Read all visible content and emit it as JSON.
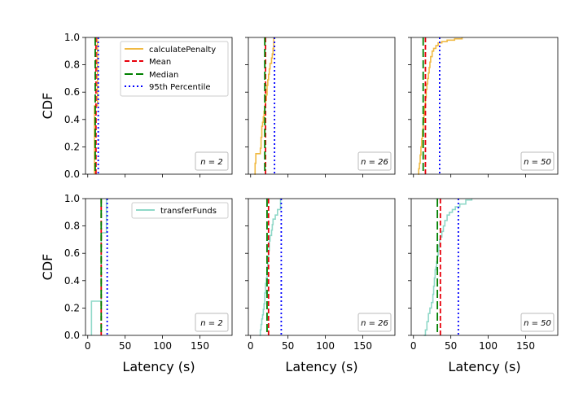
{
  "figure": {
    "ylabel": "CDF",
    "xlabel": "Latency (s)"
  },
  "colors": {
    "calculatePenalty": "#f0b942",
    "transferFunds": "#8fd8c8",
    "mean": "#e8000b",
    "median": "#008000",
    "p95": "#0000ff"
  },
  "legend": {
    "row0": [
      "calculatePenalty",
      "Mean",
      "Median",
      "95th Percentile"
    ],
    "row1": [
      "transferFunds"
    ]
  },
  "chart_data": [
    {
      "type": "line",
      "row": 0,
      "col": 0,
      "series": "calculatePenalty",
      "n_label": "n = 2",
      "xlim": [
        -3,
        193
      ],
      "ylim": [
        0,
        1
      ],
      "xticks": [
        0,
        50,
        100,
        150
      ],
      "yticks": [
        0.0,
        0.2,
        0.4,
        0.6,
        0.8,
        1.0
      ],
      "mean": 11,
      "median": 10,
      "p95": 14,
      "x": [
        9,
        9,
        13,
        13
      ],
      "y": [
        0,
        0.5,
        0.5,
        1.0
      ]
    },
    {
      "type": "line",
      "row": 0,
      "col": 1,
      "series": "calculatePenalty",
      "n_label": "n = 26",
      "xlim": [
        -3,
        193
      ],
      "ylim": [
        0,
        1
      ],
      "xticks": [
        0,
        50,
        100,
        150
      ],
      "yticks": [
        0.0,
        0.2,
        0.4,
        0.6,
        0.8,
        1.0
      ],
      "mean": 20,
      "median": 19,
      "p95": 32,
      "x": [
        5,
        6,
        6,
        7,
        7,
        13,
        13,
        14,
        14,
        15,
        15,
        16,
        17,
        18,
        19,
        20,
        21,
        22,
        22,
        23,
        24,
        25,
        26,
        27,
        28,
        29,
        30,
        31
      ],
      "y": [
        0,
        0.04,
        0.08,
        0.12,
        0.15,
        0.15,
        0.19,
        0.23,
        0.27,
        0.31,
        0.35,
        0.38,
        0.42,
        0.46,
        0.5,
        0.54,
        0.58,
        0.62,
        0.65,
        0.69,
        0.73,
        0.77,
        0.81,
        0.81,
        0.85,
        0.88,
        0.92,
        1.0
      ]
    },
    {
      "type": "line",
      "row": 0,
      "col": 2,
      "series": "calculatePenalty",
      "n_label": "n = 50",
      "xlim": [
        -3,
        193
      ],
      "ylim": [
        0,
        1
      ],
      "xticks": [
        0,
        50,
        100,
        150
      ],
      "yticks": [
        0.0,
        0.2,
        0.4,
        0.6,
        0.8,
        1.0
      ],
      "mean": 16,
      "median": 13,
      "p95": 35,
      "x": [
        6,
        7,
        8,
        9,
        10,
        11,
        12,
        13,
        14,
        15,
        16,
        17,
        18,
        19,
        20,
        21,
        22,
        23,
        25,
        27,
        30,
        33,
        38,
        45,
        55,
        65
      ],
      "y": [
        0,
        0.04,
        0.08,
        0.14,
        0.2,
        0.26,
        0.32,
        0.38,
        0.44,
        0.5,
        0.56,
        0.62,
        0.66,
        0.7,
        0.74,
        0.78,
        0.82,
        0.86,
        0.9,
        0.92,
        0.94,
        0.96,
        0.97,
        0.98,
        0.99,
        1.0
      ]
    },
    {
      "type": "line",
      "row": 1,
      "col": 0,
      "series": "transferFunds",
      "n_label": "n = 2",
      "xlim": [
        -3,
        193
      ],
      "ylim": [
        0,
        1
      ],
      "xticks": [
        0,
        50,
        100,
        150
      ],
      "yticks": [
        0.0,
        0.2,
        0.4,
        0.6,
        0.8,
        1.0
      ],
      "mean": 18,
      "median": 18,
      "p95": 26,
      "x": [
        5,
        5,
        18,
        18,
        25,
        25
      ],
      "y": [
        0,
        0.25,
        0.25,
        0.75,
        0.75,
        1.0
      ]
    },
    {
      "type": "line",
      "row": 1,
      "col": 1,
      "series": "transferFunds",
      "n_label": "n = 26",
      "xlim": [
        -3,
        193
      ],
      "ylim": [
        0,
        1
      ],
      "xticks": [
        0,
        50,
        100,
        150
      ],
      "yticks": [
        0.0,
        0.2,
        0.4,
        0.6,
        0.8,
        1.0
      ],
      "mean": 24,
      "median": 22,
      "p95": 41,
      "x": [
        12,
        13,
        14,
        15,
        16,
        17,
        18,
        19,
        19,
        20,
        20,
        21,
        22,
        22,
        23,
        24,
        24,
        25,
        25,
        26,
        28,
        29,
        30,
        33,
        36,
        40
      ],
      "y": [
        0,
        0.04,
        0.08,
        0.12,
        0.15,
        0.19,
        0.23,
        0.27,
        0.31,
        0.35,
        0.38,
        0.42,
        0.46,
        0.5,
        0.54,
        0.58,
        0.62,
        0.65,
        0.69,
        0.73,
        0.77,
        0.81,
        0.85,
        0.88,
        0.92,
        1.0
      ]
    },
    {
      "type": "line",
      "row": 1,
      "col": 2,
      "series": "transferFunds",
      "n_label": "n = 50",
      "xlim": [
        -3,
        193
      ],
      "ylim": [
        0,
        1
      ],
      "xticks": [
        0,
        50,
        100,
        150
      ],
      "yticks": [
        0.0,
        0.2,
        0.4,
        0.6,
        0.8,
        1.0
      ],
      "mean": 36,
      "median": 32,
      "p95": 60,
      "x": [
        14,
        16,
        18,
        20,
        22,
        24,
        26,
        27,
        28,
        29,
        30,
        31,
        32,
        33,
        34,
        35,
        36,
        38,
        40,
        42,
        45,
        48,
        52,
        56,
        62,
        70,
        78
      ],
      "y": [
        0,
        0.04,
        0.1,
        0.16,
        0.2,
        0.24,
        0.3,
        0.36,
        0.42,
        0.48,
        0.5,
        0.54,
        0.58,
        0.62,
        0.66,
        0.7,
        0.72,
        0.76,
        0.8,
        0.84,
        0.88,
        0.9,
        0.92,
        0.94,
        0.96,
        0.99,
        1.0
      ]
    }
  ]
}
